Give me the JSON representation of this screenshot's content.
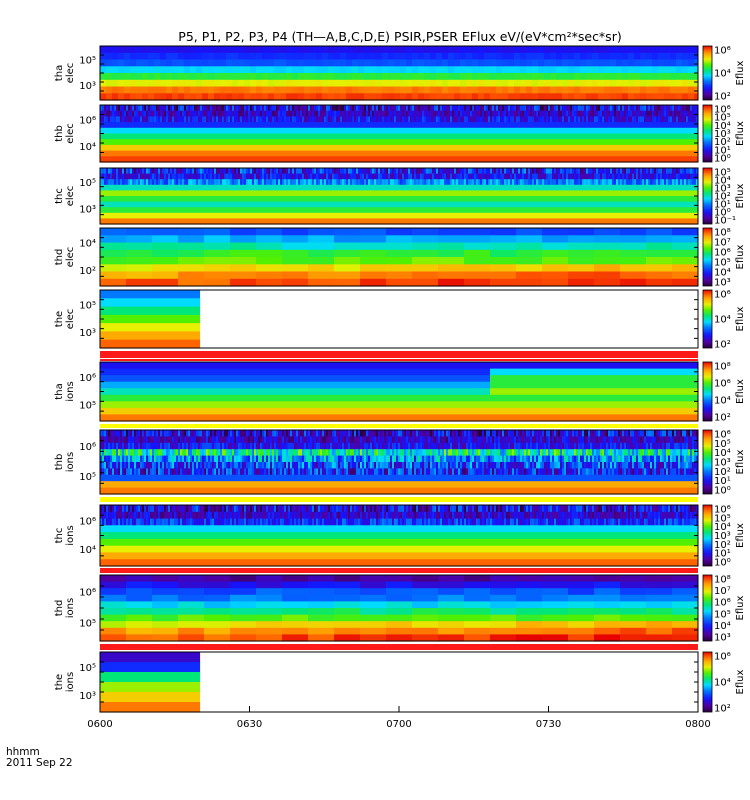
{
  "figure": {
    "title": "P5, P1, P2, P3, P4 (TH—A,B,C,D,E) PSIR,PSER EFlux eV/(eV*cm²*sec*sr)",
    "footer": {
      "time_label": "hhmm",
      "date_label": "2011 Sep 22"
    }
  },
  "chart_data": {
    "type": "heatmap",
    "title": "P5, P1, P2, P3, P4 (TH—A,B,C,D,E) PSIR,PSER EFlux eV/(eV*cm²*sec*sr)",
    "x_ticks": [
      "0600",
      "0630",
      "0700",
      "0730",
      "0800"
    ],
    "colorscale": "rainbow (black/purple low → blue → cyan → green → yellow → orange → red high)",
    "panels": [
      {
        "ylabel": [
          "tha",
          "elec"
        ],
        "yticks": [
          "10⁵",
          "10³"
        ],
        "cb_label": "Eflux",
        "cb_ticks": [
          "10⁶",
          "10⁴",
          "10²"
        ],
        "data_coverage": "0600-0800",
        "style": "smooth",
        "bands": [
          0.2,
          0.25,
          0.3,
          0.45,
          0.6,
          0.75,
          0.9,
          0.95
        ]
      },
      {
        "ylabel": [
          "thb",
          "elec"
        ],
        "yticks": [
          "10⁶",
          "10⁴"
        ],
        "cb_label": "Eflux",
        "cb_ticks": [
          "10⁶",
          "10⁵",
          "10⁴",
          "10³",
          "10²",
          "10¹",
          "10⁰"
        ],
        "data_coverage": "0600-0800",
        "style": "noisy",
        "bands": [
          0.05,
          0.1,
          0.15,
          0.25,
          0.45,
          0.55,
          0.65,
          0.8,
          0.9,
          0.95
        ]
      },
      {
        "ylabel": [
          "thc",
          "elec"
        ],
        "yticks": [
          "10⁵",
          "10³"
        ],
        "cb_label": "Eflux",
        "cb_ticks": [
          "10⁵",
          "10⁴",
          "10³",
          "10²",
          "10¹",
          "10⁰",
          "10⁻¹"
        ],
        "data_coverage": "0600-0800",
        "style": "noisy-top",
        "bands": [
          0.1,
          0.15,
          0.3,
          0.5,
          0.7,
          0.6,
          0.5,
          0.6,
          0.75,
          0.9
        ]
      },
      {
        "ylabel": [
          "thd",
          "elec"
        ],
        "yticks": [
          "10⁴",
          "10²"
        ],
        "cb_label": "Eflux",
        "cb_ticks": [
          "10⁸",
          "10⁷",
          "10⁶",
          "10⁵",
          "10⁴",
          "10³"
        ],
        "data_coverage": "0600-0800",
        "style": "blocky-gradient",
        "bands": [
          0.3,
          0.4,
          0.5,
          0.6,
          0.65,
          0.75,
          0.85,
          0.92
        ]
      },
      {
        "ylabel": [
          "the",
          "elec"
        ],
        "yticks": [
          "10⁵",
          "10³"
        ],
        "cb_label": "Eflux",
        "cb_ticks": [
          "10⁶",
          "10⁴",
          "10²"
        ],
        "data_coverage": "0600-0620",
        "style": "blocky",
        "bands": [
          0.35,
          0.45,
          0.55,
          0.65,
          0.75,
          0.85,
          0.92
        ]
      },
      {
        "ylabel": [
          "tha",
          "ions"
        ],
        "yticks": [
          "10⁶",
          "10⁵"
        ],
        "cb_label": "Eflux",
        "cb_ticks": [
          "10⁸",
          "10⁶",
          "10⁴",
          "10²"
        ],
        "data_coverage": "0600-0800",
        "style": "ions-a",
        "bands": [
          0.2,
          0.25,
          0.3,
          0.4,
          0.5,
          0.6,
          0.7,
          0.8,
          0.9
        ]
      },
      {
        "ylabel": [
          "thb",
          "ions"
        ],
        "yticks": [
          "10⁶",
          "10⁵"
        ],
        "cb_label": "Eflux",
        "cb_ticks": [
          "10⁶",
          "10⁵",
          "10⁴",
          "10³",
          "10²",
          "10¹",
          "10⁰"
        ],
        "data_coverage": "0600-0800",
        "style": "noisy-ions",
        "bands": [
          0.05,
          0.1,
          0.15,
          0.35,
          0.2,
          0.1,
          0.05,
          0.3,
          0.85,
          0.9
        ]
      },
      {
        "ylabel": [
          "thc",
          "ions"
        ],
        "yticks": [
          "10⁶",
          "10⁴"
        ],
        "cb_label": "Eflux",
        "cb_ticks": [
          "10⁶",
          "10⁵",
          "10⁴",
          "10³",
          "10²",
          "10¹",
          "10⁰"
        ],
        "data_coverage": "0600-0800",
        "style": "noisy-top",
        "bands": [
          0.05,
          0.1,
          0.2,
          0.45,
          0.55,
          0.65,
          0.75,
          0.85,
          0.92
        ]
      },
      {
        "ylabel": [
          "thd",
          "ions"
        ],
        "yticks": [
          "10⁶",
          "10⁵"
        ],
        "cb_label": "Eflux",
        "cb_ticks": [
          "10⁸",
          "10⁷",
          "10⁶",
          "10⁵",
          "10⁴",
          "10³"
        ],
        "data_coverage": "0600-0800",
        "style": "blocky-gradient",
        "bands": [
          0.1,
          0.2,
          0.3,
          0.35,
          0.45,
          0.55,
          0.65,
          0.75,
          0.85,
          0.92
        ]
      },
      {
        "ylabel": [
          "the",
          "ions"
        ],
        "yticks": [
          "10⁵",
          "10³"
        ],
        "cb_label": "Eflux",
        "cb_ticks": [
          "10⁶",
          "10⁴",
          "10²"
        ],
        "data_coverage": "0600-0620",
        "style": "blocky",
        "bands": [
          0.15,
          0.25,
          0.55,
          0.7,
          0.8,
          0.9
        ]
      }
    ],
    "separators": "red/yellow stripes between panels"
  },
  "colors": {
    "separator_red": "#ff1a1a",
    "separator_yellow": "#ffff00",
    "background": "#ffffff"
  }
}
